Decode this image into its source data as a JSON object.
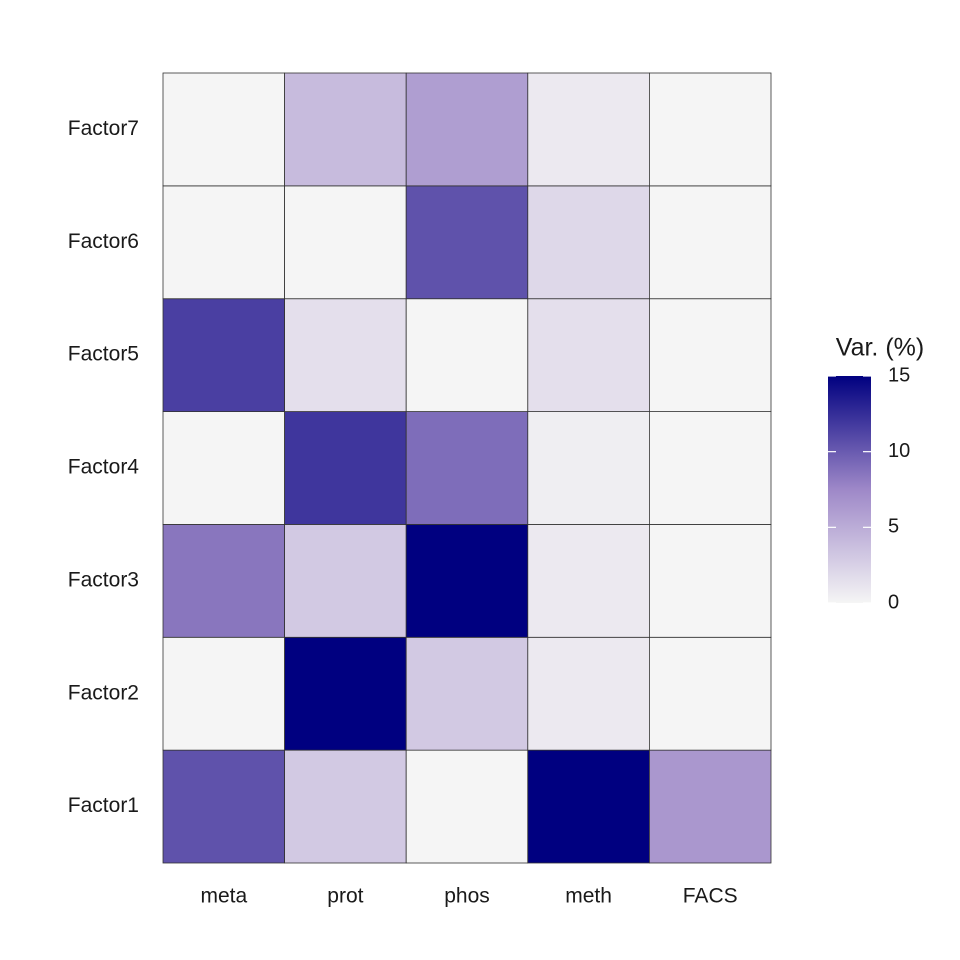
{
  "chart_data": {
    "type": "heatmap",
    "x_categories": [
      "meta",
      "prot",
      "phos",
      "meth",
      "FACS"
    ],
    "y_categories": [
      "Factor1",
      "Factor2",
      "Factor3",
      "Factor4",
      "Factor5",
      "Factor6",
      "Factor7"
    ],
    "values": [
      [
        10.5,
        3,
        0,
        15,
        6.5
      ],
      [
        0,
        15,
        3,
        0.8,
        0
      ],
      [
        8.5,
        3,
        15,
        0.8,
        0
      ],
      [
        0,
        12,
        9,
        0.5,
        0
      ],
      [
        11.5,
        1.5,
        0,
        1.5,
        0
      ],
      [
        0,
        0,
        10.5,
        2,
        0
      ],
      [
        0,
        4,
        6,
        0.8,
        0
      ]
    ],
    "colors": [
      "#f5f5f5",
      "#9e88c8",
      "#000080"
    ],
    "legend_title": "Var. (%)",
    "zlim": [
      0,
      15
    ],
    "zticks": [
      0,
      5,
      10,
      15
    ]
  }
}
